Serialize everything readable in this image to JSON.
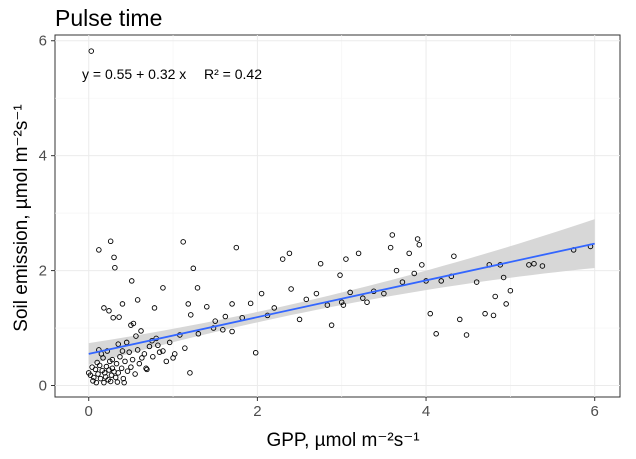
{
  "chart_data": {
    "type": "scatter",
    "title": "Pulse time",
    "xlabel": "GPP, µmol m⁻²s⁻¹",
    "ylabel": "Soil emission, µmol m⁻²s⁻¹",
    "xlim": [
      -0.4,
      6.3
    ],
    "ylim": [
      -0.2,
      6.1
    ],
    "x_ticks": [
      0,
      2,
      4,
      6
    ],
    "y_ticks": [
      0,
      2,
      4,
      6
    ],
    "x_tick_labels": [
      "0",
      "2",
      "4",
      "6"
    ],
    "y_tick_labels": [
      "0",
      "2",
      "4",
      "6"
    ],
    "grid": true,
    "annotation": {
      "equation": "y = 0.55 + 0.32 x",
      "r_squared": "R² = 0.42"
    },
    "fit": {
      "intercept": 0.55,
      "slope": 0.32,
      "x_range": [
        0,
        6
      ],
      "line_color": "#3366ff",
      "band_color": "#d3d3d3"
    },
    "points": [
      [
        0.03,
        5.82
      ],
      [
        0.12,
        2.36
      ],
      [
        0.18,
        1.35
      ],
      [
        0.26,
        2.51
      ],
      [
        0.31,
        2.05
      ],
      [
        0.29,
        1.18
      ],
      [
        0.36,
        1.19
      ],
      [
        0.24,
        1.3
      ],
      [
        0.4,
        1.42
      ],
      [
        0.5,
        1.05
      ],
      [
        0.53,
        1.08
      ],
      [
        0.58,
        1.49
      ],
      [
        0.51,
        1.82
      ],
      [
        0.3,
        2.23
      ],
      [
        0.78,
        1.35
      ],
      [
        0.88,
        1.7
      ],
      [
        1.12,
        2.5
      ],
      [
        1.18,
        1.42
      ],
      [
        1.21,
        1.23
      ],
      [
        1.24,
        2.04
      ],
      [
        1.29,
        1.7
      ],
      [
        1.4,
        1.37
      ],
      [
        1.5,
        1.12
      ],
      [
        1.59,
        0.97
      ],
      [
        1.62,
        1.2
      ],
      [
        1.7,
        1.42
      ],
      [
        1.75,
        2.4
      ],
      [
        1.82,
        1.18
      ],
      [
        1.92,
        1.43
      ],
      [
        1.98,
        0.57
      ],
      [
        2.05,
        1.6
      ],
      [
        2.12,
        1.22
      ],
      [
        2.2,
        1.35
      ],
      [
        2.3,
        2.2
      ],
      [
        2.38,
        2.3
      ],
      [
        2.4,
        1.68
      ],
      [
        2.5,
        1.15
      ],
      [
        2.58,
        1.5
      ],
      [
        2.7,
        1.6
      ],
      [
        2.75,
        2.12
      ],
      [
        2.83,
        1.4
      ],
      [
        2.88,
        1.05
      ],
      [
        2.98,
        1.92
      ],
      [
        3.0,
        1.45
      ],
      [
        3.02,
        1.4
      ],
      [
        3.05,
        2.2
      ],
      [
        3.1,
        1.62
      ],
      [
        3.2,
        2.3
      ],
      [
        3.25,
        1.52
      ],
      [
        3.3,
        1.45
      ],
      [
        3.38,
        1.64
      ],
      [
        3.5,
        1.6
      ],
      [
        3.58,
        2.4
      ],
      [
        3.6,
        2.62
      ],
      [
        3.65,
        2.0
      ],
      [
        3.72,
        1.8
      ],
      [
        3.8,
        2.3
      ],
      [
        3.86,
        1.95
      ],
      [
        3.9,
        2.55
      ],
      [
        3.92,
        2.45
      ],
      [
        3.95,
        2.1
      ],
      [
        4.0,
        1.82
      ],
      [
        4.05,
        1.25
      ],
      [
        4.12,
        0.9
      ],
      [
        4.18,
        1.82
      ],
      [
        4.3,
        1.9
      ],
      [
        4.33,
        2.25
      ],
      [
        4.4,
        1.15
      ],
      [
        4.48,
        0.88
      ],
      [
        4.6,
        1.8
      ],
      [
        4.7,
        1.25
      ],
      [
        4.75,
        2.1
      ],
      [
        4.8,
        1.22
      ],
      [
        4.82,
        1.55
      ],
      [
        4.88,
        2.1
      ],
      [
        4.92,
        1.88
      ],
      [
        4.95,
        1.42
      ],
      [
        5.0,
        1.65
      ],
      [
        5.22,
        2.1
      ],
      [
        5.28,
        2.12
      ],
      [
        5.38,
        2.08
      ],
      [
        5.75,
        2.36
      ],
      [
        5.95,
        2.42
      ],
      [
        0.0,
        0.22
      ],
      [
        0.02,
        0.18
      ],
      [
        0.04,
        0.32
      ],
      [
        0.06,
        0.14
      ],
      [
        0.08,
        0.28
      ],
      [
        0.1,
        0.4
      ],
      [
        0.11,
        0.2
      ],
      [
        0.13,
        0.35
      ],
      [
        0.14,
        0.12
      ],
      [
        0.16,
        0.26
      ],
      [
        0.17,
        0.48
      ],
      [
        0.19,
        0.22
      ],
      [
        0.2,
        0.15
      ],
      [
        0.21,
        0.33
      ],
      [
        0.23,
        0.1
      ],
      [
        0.24,
        0.27
      ],
      [
        0.25,
        0.42
      ],
      [
        0.27,
        0.18
      ],
      [
        0.28,
        0.3
      ],
      [
        0.3,
        0.24
      ],
      [
        0.32,
        0.14
      ],
      [
        0.33,
        0.38
      ],
      [
        0.35,
        0.22
      ],
      [
        0.37,
        0.5
      ],
      [
        0.39,
        0.3
      ],
      [
        0.41,
        0.12
      ],
      [
        0.43,
        0.42
      ],
      [
        0.46,
        0.25
      ],
      [
        0.48,
        0.58
      ],
      [
        0.5,
        0.32
      ],
      [
        0.52,
        0.45
      ],
      [
        0.55,
        0.2
      ],
      [
        0.58,
        0.62
      ],
      [
        0.6,
        0.38
      ],
      [
        0.63,
        0.48
      ],
      [
        0.66,
        0.55
      ],
      [
        0.69,
        0.28
      ],
      [
        0.72,
        0.68
      ],
      [
        0.76,
        0.5
      ],
      [
        0.8,
        0.82
      ],
      [
        0.84,
        0.58
      ],
      [
        0.88,
        0.6
      ],
      [
        0.92,
        0.42
      ],
      [
        0.96,
        0.75
      ],
      [
        1.02,
        0.55
      ],
      [
        1.08,
        0.88
      ],
      [
        1.14,
        0.65
      ],
      [
        1.2,
        0.22
      ],
      [
        1.3,
        0.9
      ],
      [
        1.48,
        1.0
      ],
      [
        1.7,
        0.94
      ],
      [
        0.15,
        0.55
      ],
      [
        0.22,
        0.6
      ],
      [
        0.35,
        0.72
      ],
      [
        0.45,
        0.75
      ],
      [
        0.62,
        0.95
      ],
      [
        0.75,
        0.78
      ],
      [
        0.05,
        0.08
      ],
      [
        0.09,
        0.05
      ],
      [
        0.18,
        0.05
      ],
      [
        0.26,
        0.07
      ],
      [
        0.34,
        0.06
      ],
      [
        0.42,
        0.05
      ],
      [
        0.12,
        0.62
      ],
      [
        0.28,
        0.45
      ],
      [
        0.68,
        0.3
      ],
      [
        0.82,
        0.7
      ],
      [
        1.0,
        0.48
      ],
      [
        0.56,
        0.86
      ],
      [
        0.4,
        0.6
      ]
    ]
  }
}
